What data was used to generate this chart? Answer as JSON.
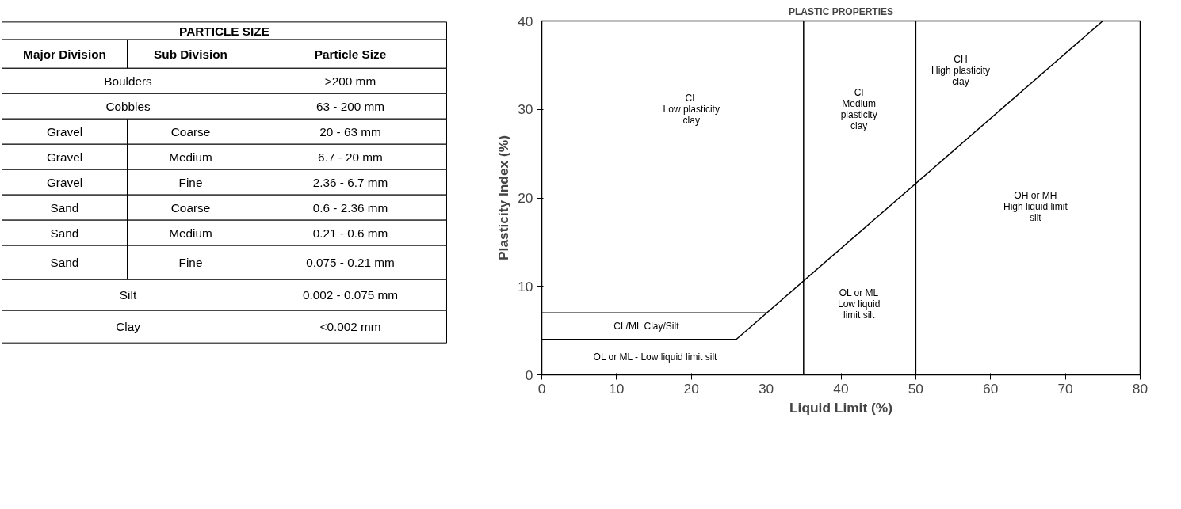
{
  "chart_data": [
    {
      "type": "other",
      "title": "PARTICLE SIZE",
      "annotations": [
        "Major Division",
        "Sub Division",
        "Particle Size",
        "Boulders",
        ">200 mm",
        "Cobbles",
        "63 - 200 mm",
        "Gravel",
        "Coarse",
        "20 - 63 mm",
        "Gravel",
        "Medium",
        "6.7 - 20 mm",
        "Gravel",
        "Fine",
        "2.36 - 6.7 mm",
        "Sand",
        "Coarse",
        "0.6 - 2.36 mm",
        "Sand",
        "Medium",
        "0.21 - 0.6 mm",
        "Sand",
        "Fine",
        "0.075 - 0.21 mm",
        "Silt",
        "0.002 - 0.075 mm",
        "Clay",
        "<0.002 mm"
      ]
    },
    {
      "type": "line",
      "title": "PLASTIC PROPERTIES",
      "xlabel": "Liquid Limit (%)",
      "ylabel": "Plasticity Index (%)",
      "xlim": [
        0,
        80
      ],
      "ylim": [
        0,
        40
      ],
      "xticks": [
        0,
        10,
        20,
        30,
        40,
        50,
        60,
        70,
        80
      ],
      "yticks": [
        0,
        10,
        20,
        30,
        40
      ],
      "grid": false,
      "series": [
        {
          "x": [
            0,
            30
          ],
          "values": [
            7,
            7
          ],
          "color": "#000000"
        },
        {
          "x": [
            0,
            26
          ],
          "values": [
            4,
            4
          ],
          "color": "#000000"
        },
        {
          "x": [
            26,
            75
          ],
          "values": [
            4,
            40
          ],
          "color": "#000000"
        }
      ],
      "ref_lines": [
        {
          "axis": "x",
          "value": 35,
          "color": "#000000"
        },
        {
          "axis": "x",
          "value": 50,
          "color": "#000000"
        }
      ],
      "annotations": [
        "CL\nLow plasticity\nclay",
        "CI\nMedium\nplasticity\nclay",
        "CH\nHigh plasticity\nclay",
        "OH or MH\nHigh liquid limit\nsilt",
        "OL or ML\nLow liquid\nlimit silt",
        "CL/ML Clay/Silt",
        "OL or ML - Low liquid limit silt"
      ]
    }
  ]
}
